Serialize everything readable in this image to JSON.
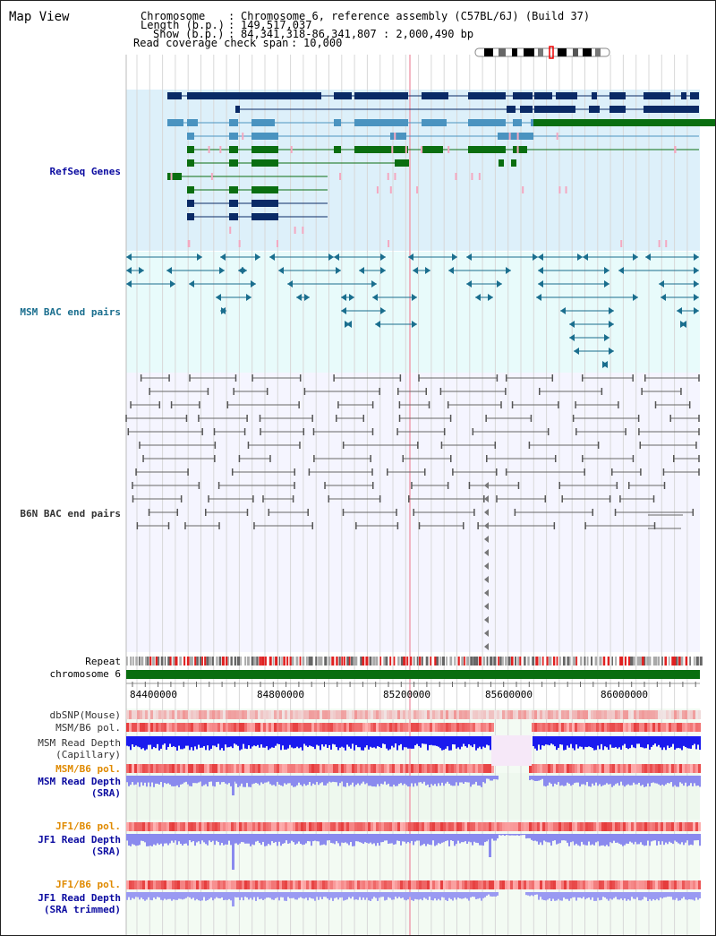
{
  "page": {
    "title": "Map View"
  },
  "header": {
    "chromosome_label": "Chromosome",
    "chromosome_value": "Chromosome 6, reference assembly (C57BL/6J) (Build 37)",
    "length_label": "Length (b.p.)",
    "length_value": "149,517,037",
    "show_label": "Show (b.p.)",
    "show_value": "84,341,318-86,341,807 : 2,000,490 bp",
    "coverage_label": "Read coverage check span",
    "coverage_value": "10,000",
    "separator": ":"
  },
  "tracks": {
    "refseq": "RefSeq Genes",
    "msm_bac": "MSM BAC end pairs",
    "b6n_bac": "B6N BAC end pairs",
    "repeat": "Repeat",
    "chromosome": "chromosome 6",
    "dbsnp": "dbSNP(Mouse)",
    "msm_b6_pol_1": "MSM/B6 pol.",
    "msm_read_depth_cap_1": "MSM Read Depth",
    "msm_read_depth_cap_2": "(Capillary)",
    "msm_b6_pol_2": "MSM/B6 pol.",
    "msm_read_depth_sra_1": "MSM Read Depth",
    "msm_read_depth_sra_2": "(SRA)",
    "jf1_b6_pol_1": "JF1/B6 pol.",
    "jf1_read_depth_sra_1": "JF1 Read Depth",
    "jf1_read_depth_sra_2": "(SRA)",
    "jf1_b6_pol_2": "JF1/B6 pol.",
    "jf1_read_depth_trim_1": "JF1 Read Depth",
    "jf1_read_depth_trim_2": "(SRA trimmed)"
  },
  "ruler": {
    "ticks": [
      "84400000",
      "84800000",
      "85200000",
      "85600000",
      "86000000"
    ]
  },
  "colors": {
    "refseq_bg": "#ddf0fa",
    "msm_bac_bg": "#e8fbfb",
    "b6n_bg": "#f5f5ff",
    "navy": "#0a2a66",
    "teal": "#1a6e8e",
    "mid_blue": "#4a93c0",
    "green": "#0a6e10",
    "pink": "#f4a8c0",
    "chrom_green": "#0a6e10",
    "read_depth_blue": "#1a1aee",
    "sra_blue": "#8a8aee",
    "orange_label": "#e08a00",
    "dark_blue_label": "#0a0aa0"
  },
  "chart_data": {
    "type": "genome-browser",
    "chromosome": "6",
    "range_bp": [
      84341318,
      86341807
    ],
    "axis_ticks": [
      84400000,
      84800000,
      85200000,
      85600000,
      86000000
    ]
  }
}
